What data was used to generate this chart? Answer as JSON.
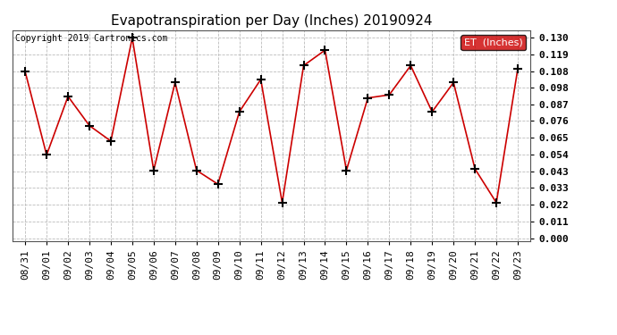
{
  "title": "Evapotranspiration per Day (Inches) 20190924",
  "copyright": "Copyright 2019 Cartronics.com",
  "legend_label": "ET  (Inches)",
  "x_labels_display": [
    "08/31",
    "09/01",
    "09/02",
    "09/03",
    "09/04",
    "09/05",
    "09/06",
    "09/07",
    "09/08",
    "09/09",
    "09/10",
    "09/11",
    "09/12",
    "09/13",
    "09/14",
    "09/15",
    "09/16",
    "09/17",
    "09/18",
    "09/19",
    "09/20",
    "09/21",
    "09/22",
    "09/23"
  ],
  "y_values": [
    0.108,
    0.054,
    0.092,
    0.073,
    0.063,
    0.13,
    0.044,
    0.101,
    0.044,
    0.035,
    0.082,
    0.103,
    0.023,
    0.112,
    0.122,
    0.044,
    0.091,
    0.093,
    0.112,
    0.082,
    0.101,
    0.045,
    0.023,
    0.11
  ],
  "y_ticks": [
    0.0,
    0.011,
    0.022,
    0.033,
    0.043,
    0.054,
    0.065,
    0.076,
    0.087,
    0.098,
    0.108,
    0.119,
    0.13
  ],
  "ylim_min": -0.002,
  "ylim_max": 0.135,
  "line_color": "#cc0000",
  "marker": "+",
  "marker_color": "black",
  "grid_color": "#bbbbbb",
  "bg_color": "#ffffff",
  "title_fontsize": 11,
  "tick_fontsize": 8,
  "copyright_fontsize": 7,
  "legend_bg": "#cc0000",
  "legend_fg": "white",
  "legend_fontsize": 8
}
